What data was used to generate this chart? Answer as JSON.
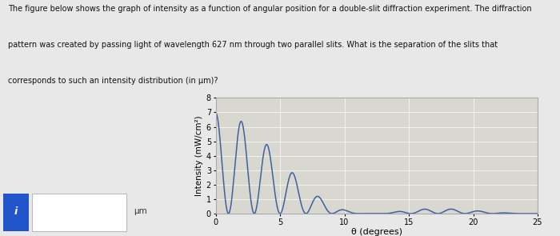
{
  "title_line1": "The figure below shows the graph of intensity as a function of angular position for a double-slit diffraction experiment. The diffraction",
  "title_line2": "pattern was created by passing light of wavelength 627 nm through two parallel slits. What is the separation of the slits that",
  "title_line3": "corresponds to such an intensity distribution (in μm)?",
  "xlabel": "θ (degrees)",
  "ylabel": "Intensity (mW/cm²)",
  "xlim": [
    0,
    25
  ],
  "ylim": [
    0,
    8
  ],
  "xticks": [
    0,
    5,
    10,
    15,
    20,
    25
  ],
  "yticks": [
    0,
    1,
    2,
    3,
    4,
    5,
    6,
    7,
    8
  ],
  "line_color": "#4060a0",
  "bg_color": "#e8e8e8",
  "plot_bg": "#d8d8d0",
  "input_label": "μm",
  "input_box_color": "#2255cc",
  "central_peak": 7.0,
  "single_slit_min_deg": 12.0,
  "double_slit_fringe_deg": 2.0
}
